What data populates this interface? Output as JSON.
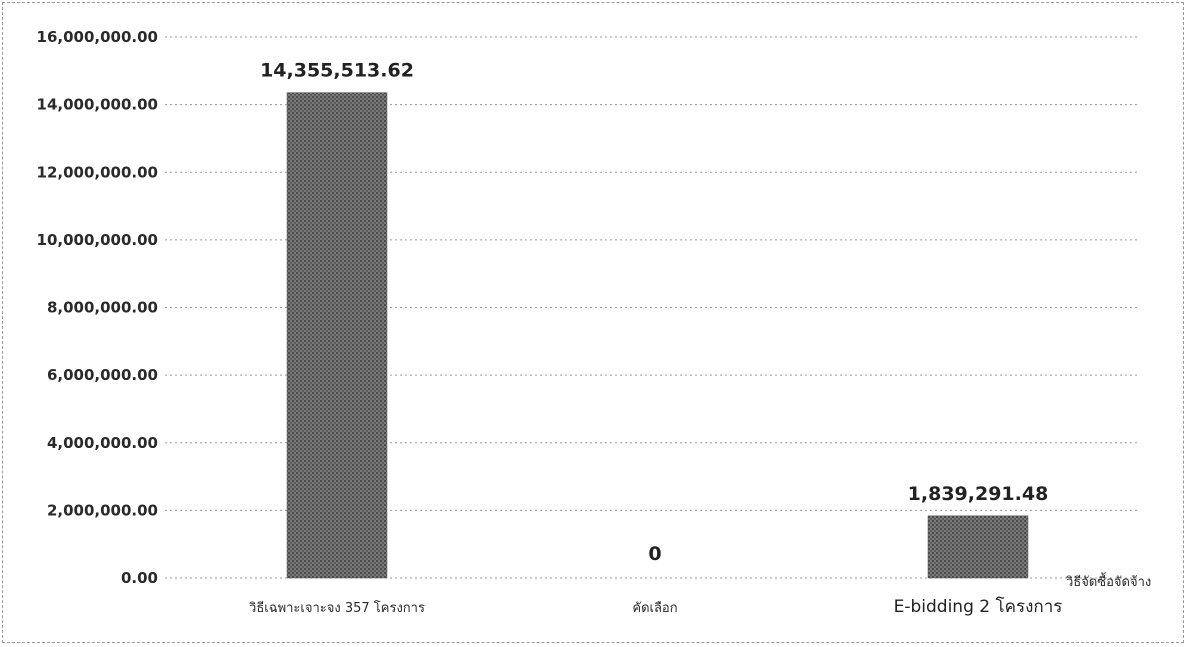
{
  "chart_data": {
    "type": "bar",
    "categories": [
      "วิธีเฉพาะเจาะจง 357 โครงการ",
      "คัดเลือก",
      "E-bidding 2 โครงการ"
    ],
    "values": [
      14355513.62,
      0,
      1839291.48
    ],
    "data_labels": [
      "14,355,513.62",
      "0",
      "1,839,291.48"
    ],
    "y_ticks": [
      0,
      2000000,
      4000000,
      6000000,
      8000000,
      10000000,
      12000000,
      14000000,
      16000000
    ],
    "y_tick_labels": [
      "0.00",
      "2,000,000.00",
      "4,000,000.00",
      "6,000,000.00",
      "8,000,000.00",
      "10,000,000.00",
      "12,000,000.00",
      "14,000,000.00",
      "16,000,000.00"
    ],
    "ylim": [
      0,
      16000000
    ],
    "xlabel": "วิธีจัดซื้อจัดจ้าง",
    "ylabel": "",
    "grid": true,
    "legend": "none",
    "bar_color": "#6e6e6e"
  }
}
